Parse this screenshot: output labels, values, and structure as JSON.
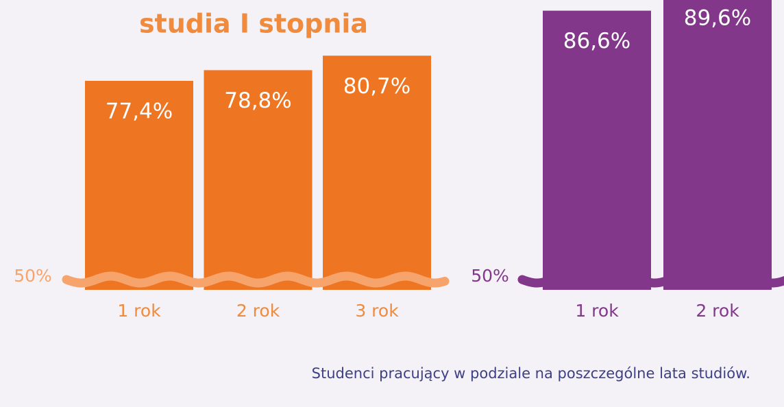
{
  "chart_data": [
    {
      "type": "bar",
      "title": "studia I stopnia",
      "categories": [
        "1 rok",
        "2 rok",
        "3 rok"
      ],
      "values": [
        77.4,
        78.8,
        80.7
      ],
      "value_labels": [
        "77,4%",
        "78,8%",
        "80,7%"
      ],
      "color": "#ee7623",
      "label_color": "#f08a3c",
      "wave_color": "#f6a46c",
      "ylim": [
        50,
        88
      ],
      "yticks": [
        {
          "value": 50,
          "label": "50%"
        }
      ]
    },
    {
      "type": "bar",
      "categories": [
        "1 rok",
        "2 rok"
      ],
      "values": [
        86.6,
        89.6
      ],
      "value_labels": [
        "86,6%",
        "89,6%"
      ],
      "color": "#83378b",
      "label_color": "#83378b",
      "wave_color": "#83378b",
      "ylim": [
        50,
        88
      ],
      "yticks": [
        {
          "value": 50,
          "label": "50%"
        }
      ]
    }
  ],
  "caption": "Studenci pracujący w podziale na poszczególne lata studiów."
}
